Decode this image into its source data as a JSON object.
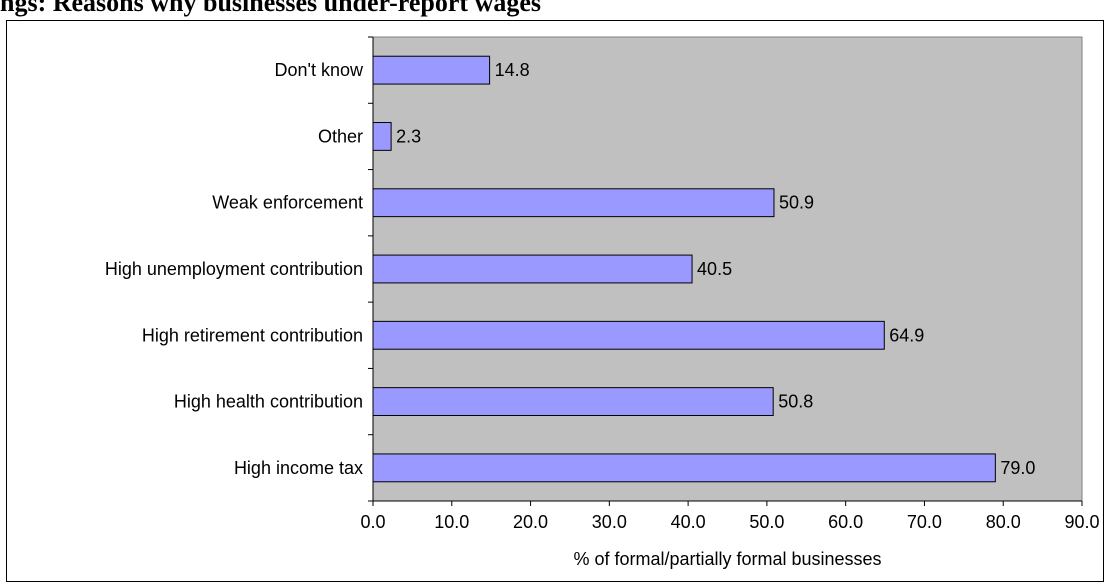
{
  "page": {
    "title": "ngs: Reasons why businesses under-report wages"
  },
  "chart_data": {
    "type": "bar",
    "orientation": "horizontal",
    "title": "",
    "xlabel": "% of formal/partially formal businesses",
    "ylabel": "",
    "categories": [
      "High income tax",
      "High health contribution",
      "High retirement contribution",
      "High unemployment contribution",
      "Weak enforcement",
      "Other",
      "Don't know"
    ],
    "values": [
      79.0,
      50.8,
      64.9,
      40.5,
      50.9,
      2.3,
      14.8
    ],
    "value_labels": [
      "79.0",
      "50.8",
      "64.9",
      "40.5",
      "50.9",
      "2.3",
      "14.8"
    ],
    "xlim": [
      0,
      90
    ],
    "xticks": [
      "0.0",
      "10.0",
      "20.0",
      "30.0",
      "40.0",
      "50.0",
      "60.0",
      "70.0",
      "80.0",
      "90.0"
    ],
    "grid": false,
    "legend": "none",
    "colors": {
      "bar_fill": "#9999ff",
      "bar_stroke": "#000000",
      "plot_background": "#c0c0c0"
    }
  }
}
